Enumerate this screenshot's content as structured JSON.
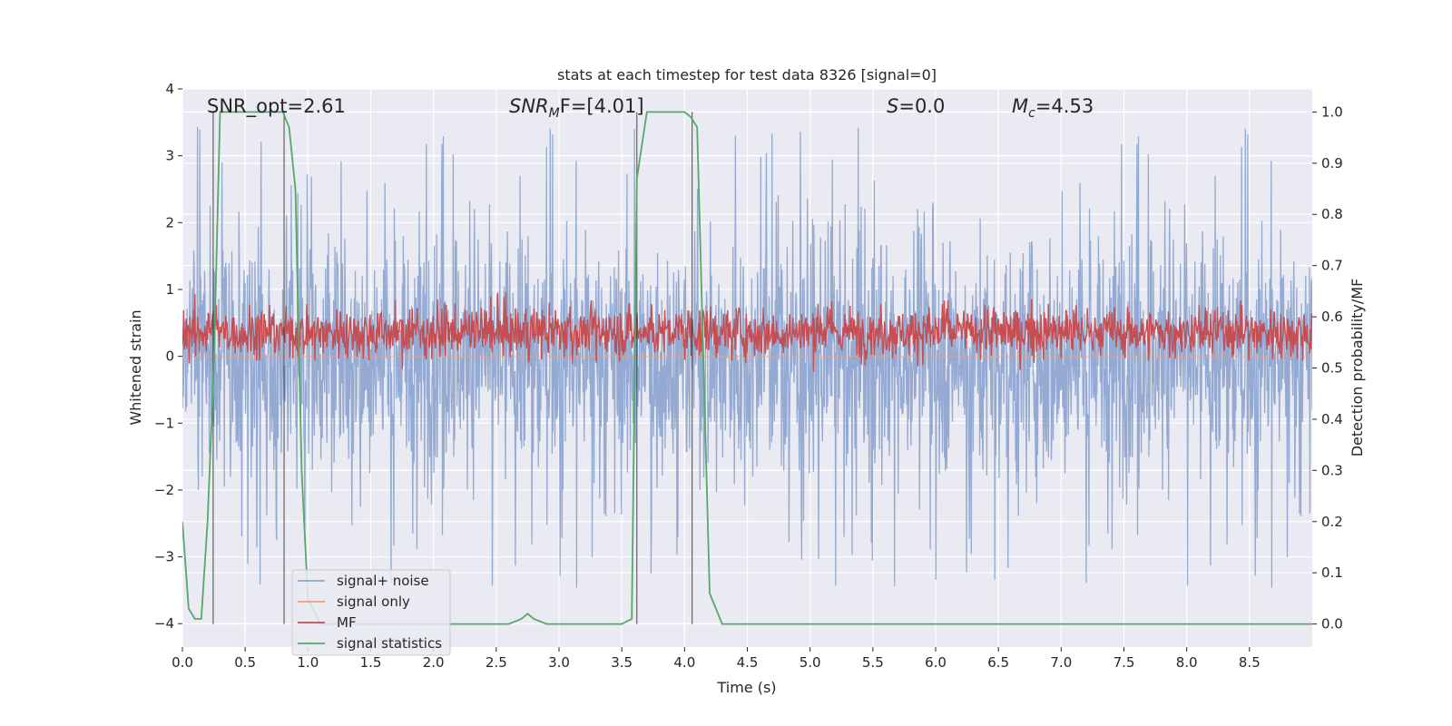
{
  "chart_data": {
    "type": "line",
    "title": "stats at each timestep for test data 8326 [signal=0]",
    "xlabel": "Time (s)",
    "ylabel": "Whitened strain",
    "ylabel_right": "Detection probability/MF",
    "xlim": [
      0.0,
      9.0
    ],
    "ylim": [
      -4.35,
      4.0
    ],
    "ylim_right": [
      -0.045,
      1.045
    ],
    "x_ticks": [
      "0.0",
      "0.5",
      "1.0",
      "1.5",
      "2.0",
      "2.5",
      "3.0",
      "3.5",
      "4.0",
      "4.5",
      "5.0",
      "5.5",
      "6.0",
      "6.5",
      "7.0",
      "7.5",
      "8.0",
      "8.5"
    ],
    "y_ticks": [
      "4",
      "3",
      "2",
      "1",
      "0",
      "−1",
      "−2",
      "−3",
      "−4"
    ],
    "y_ticks_right": [
      "1.0",
      "0.9",
      "0.8",
      "0.7",
      "0.6",
      "0.5",
      "0.4",
      "0.3",
      "0.2",
      "0.1",
      "0.0"
    ],
    "grid": true,
    "legend_position": "lower-left",
    "annotations": {
      "snr_opt": "SNR_opt=2.61",
      "snr_mf_main": "SNR",
      "snr_mf_sub": "M",
      "snr_mf_rest": "F=[4.01]",
      "s_main": "S",
      "s_rest": "=0.0",
      "mc_main": "M",
      "mc_sub": "c",
      "mc_rest": "=4.53"
    },
    "series": [
      {
        "name": "signal+ noise",
        "color": "#8fa6d0",
        "style": "dense noise",
        "noise_std": 0.9,
        "noise_peak_max": 3.6,
        "noise_peak_min": -3.5
      },
      {
        "name": "signal only",
        "color": "#ef9f7a",
        "values_note": "flat near 0",
        "value": 0.0
      },
      {
        "name": "MF",
        "color": "#c44e52",
        "axis": "right",
        "band_center": 0.57,
        "band_halfwidth": 0.035
      },
      {
        "name": "signal statistics",
        "color": "#55a868",
        "axis": "right",
        "x": [
          0.0,
          0.05,
          0.1,
          0.15,
          0.2,
          0.25,
          0.3,
          0.35,
          0.5,
          0.7,
          0.8,
          0.85,
          0.9,
          0.95,
          1.0,
          1.1,
          1.5,
          2.0,
          2.5,
          2.6,
          2.7,
          2.75,
          2.8,
          2.9,
          3.0,
          3.5,
          3.58,
          3.62,
          3.7,
          4.0,
          4.05,
          4.1,
          4.2,
          4.3,
          4.4,
          5.0,
          9.0
        ],
        "y": [
          0.2,
          0.03,
          0.01,
          0.01,
          0.2,
          0.5,
          1.0,
          1.0,
          1.0,
          1.0,
          1.0,
          0.97,
          0.85,
          0.3,
          0.05,
          0.0,
          0.0,
          0.0,
          0.0,
          0.0,
          0.01,
          0.02,
          0.01,
          0.0,
          0.0,
          0.0,
          0.01,
          0.87,
          1.0,
          1.0,
          0.99,
          0.97,
          0.06,
          0.0,
          0.0,
          0.0,
          0.0
        ]
      }
    ],
    "vertical_markers_s": [
      0.245,
      0.81,
      3.62,
      4.06
    ]
  }
}
